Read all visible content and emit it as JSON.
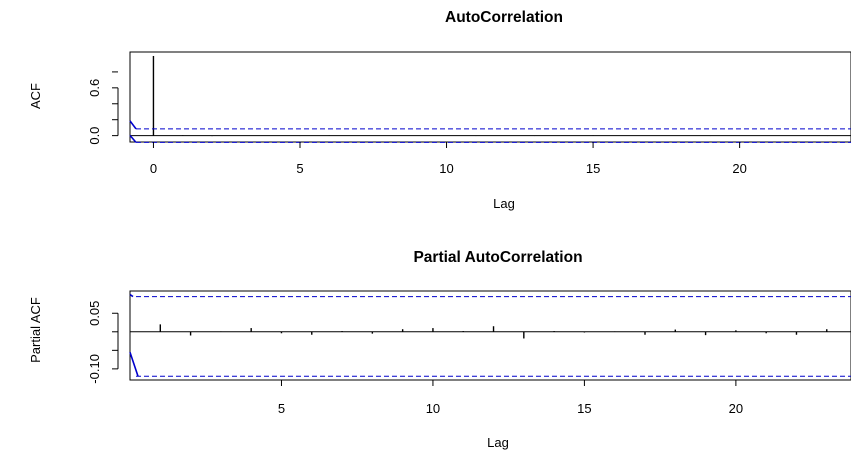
{
  "chart_data": [
    {
      "type": "bar",
      "title": "AutoCorrelation",
      "xlabel": "Lag",
      "ylabel": "ACF",
      "xlim": [
        -0.8,
        23.8
      ],
      "ylim": [
        -0.08,
        1.05
      ],
      "xticks": [
        0,
        5,
        10,
        15,
        20
      ],
      "yticks": [
        0.0,
        0.6
      ],
      "ytick_labels": [
        "0.0",
        "0.6"
      ],
      "lags": [
        0,
        1,
        2,
        3,
        4,
        5,
        6,
        7,
        8,
        9,
        10,
        11,
        12,
        13,
        14,
        15,
        16,
        17,
        18,
        19,
        20,
        21,
        22,
        23
      ],
      "values": [
        1.0,
        0.004,
        -0.006,
        -0.004,
        -0.003,
        -0.005,
        0.003,
        -0.004,
        -0.003,
        -0.004,
        -0.004,
        -0.005,
        -0.002,
        -0.005,
        -0.003,
        0.003,
        -0.003,
        -0.004,
        -0.004,
        -0.005,
        -0.002,
        -0.003,
        -0.004,
        -0.005
      ],
      "confidence_band": [
        -0.085,
        0.085
      ],
      "colors": {
        "bars": "#000000",
        "band": "#0000cc"
      }
    },
    {
      "type": "bar",
      "title": "Partial AutoCorrelation",
      "xlabel": "Lag",
      "ylabel": "Partial ACF",
      "xlim": [
        0,
        23.8
      ],
      "ylim": [
        -0.13,
        0.11
      ],
      "xticks": [
        5,
        10,
        15,
        20
      ],
      "yticks": [
        0.05,
        -0.1
      ],
      "ytick_labels": [
        "0.05",
        "-0.10"
      ],
      "lags": [
        1,
        2,
        3,
        4,
        5,
        6,
        7,
        8,
        9,
        10,
        11,
        12,
        13,
        14,
        15,
        16,
        17,
        18,
        19,
        20,
        21,
        22,
        23
      ],
      "values": [
        0.02,
        -0.01,
        0.001,
        0.01,
        -0.004,
        -0.008,
        0.002,
        -0.005,
        0.007,
        0.01,
        0.002,
        0.015,
        -0.018,
        0.002,
        -0.002,
        0.001,
        -0.008,
        0.006,
        -0.009,
        0.004,
        -0.004,
        -0.008,
        0.007
      ],
      "confidence_band": [
        -0.12,
        0.095
      ],
      "colors": {
        "bars": "#000000",
        "band": "#0000cc"
      }
    }
  ]
}
